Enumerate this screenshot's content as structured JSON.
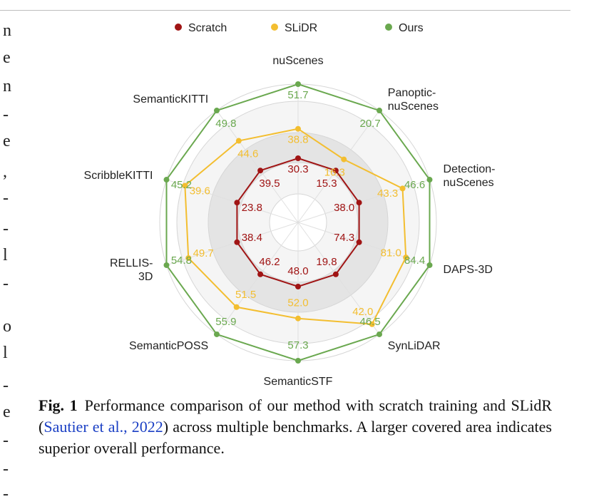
{
  "chart_data": {
    "type": "radar",
    "title": "",
    "axes": [
      "nuScenes",
      "Panoptic-\nnuScenes",
      "Detection-\nnuScenes",
      "DAPS-3D",
      "SynLiDAR",
      "SemanticSTF",
      "SemanticPOSS",
      "RELLIS-\n3D",
      "ScribbleKITTI",
      "SemanticKITTI"
    ],
    "series": [
      {
        "name": "Scratch",
        "color": "#a01414",
        "values": [
          30.3,
          15.3,
          38.0,
          74.3,
          19.8,
          48.0,
          46.2,
          38.4,
          23.8,
          39.5
        ]
      },
      {
        "name": "SLiDR",
        "color": "#f3be30",
        "values": [
          38.8,
          16.3,
          43.3,
          81.0,
          42.0,
          52.0,
          51.5,
          49.7,
          39.6,
          44.6
        ]
      },
      {
        "name": "Ours",
        "color": "#6aa84f",
        "values": [
          51.7,
          20.7,
          46.6,
          84.4,
          46.5,
          57.3,
          55.9,
          54.8,
          45.2,
          49.8
        ]
      }
    ],
    "legend_position": "top",
    "grid": true
  },
  "caption": {
    "label": "Fig. 1",
    "text_before": "Performance comparison of our method with scratch training and SLidR (",
    "citation": "Sautier et al., 2022",
    "text_after": ") across multiple benchmarks. A larger covered area indicates superior overall performance."
  },
  "left_fragments": [
    "n",
    "e",
    "n",
    "-",
    "e",
    ",",
    "-",
    "-",
    "l",
    "-",
    "o",
    "l",
    "-",
    "e",
    "-",
    "-",
    "-"
  ],
  "right_fragments": []
}
